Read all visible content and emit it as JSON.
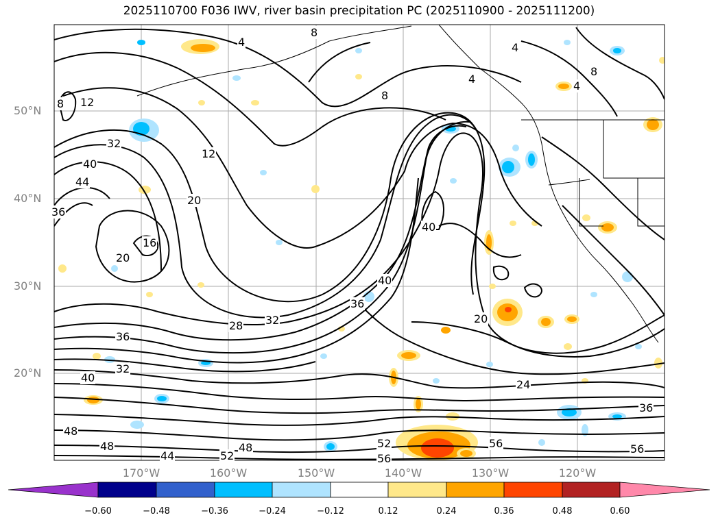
{
  "title": "2025110700 F036 IWV, river basin precipitation PC (2025110900 - 2025111200)",
  "map": {
    "lat_labels": [
      "50°N",
      "40°N",
      "30°N",
      "20°N"
    ],
    "lon_labels": [
      "170°W",
      "160°W",
      "150°W",
      "140°W",
      "130°W",
      "120°W"
    ],
    "contour_labels": [
      "4",
      "4",
      "4",
      "8",
      "8",
      "8",
      "12",
      "12",
      "16",
      "20",
      "20",
      "20",
      "24",
      "28",
      "32",
      "32",
      "32",
      "36",
      "36",
      "36",
      "36",
      "40",
      "40",
      "40",
      "40",
      "44",
      "44",
      "48",
      "48",
      "48",
      "52",
      "52",
      "56",
      "56",
      "56",
      "8",
      "4"
    ]
  },
  "colorbar": {
    "tick_labels": [
      "−0.60",
      "−0.48",
      "−0.36",
      "−0.24",
      "−0.12",
      "0.12",
      "0.24",
      "0.36",
      "0.48",
      "0.60"
    ],
    "colors": [
      "#9932cc",
      "#00008b",
      "#3160cc",
      "#00bfff",
      "#afe4ff",
      "#ffffff",
      "#ffe88a",
      "#ffa500",
      "#ff4500",
      "#b22222",
      "#ff88aa"
    ]
  }
}
